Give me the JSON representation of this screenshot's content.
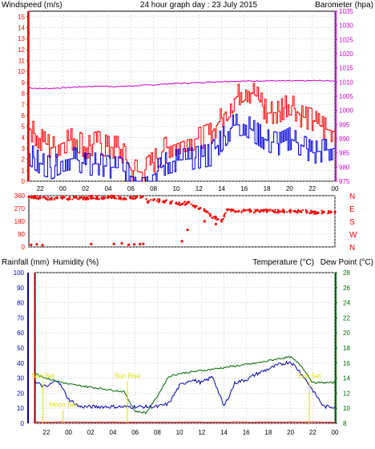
{
  "header": {
    "windspeed_label": "Windspeed (m/s)",
    "title": "24 hour graph day : 23 July 2015",
    "barometer_label": "Barometer (hpa)"
  },
  "mid_labels": {
    "rainfall": "Rainfall (mm)",
    "humidity": "Humidity (%)",
    "temperature": "Temperature (°C)",
    "dewpoint": "Dew Point (°C)"
  },
  "time_ticks": [
    "22",
    "00",
    "02",
    "04",
    "06",
    "08",
    "10",
    "12",
    "14",
    "16",
    "18",
    "20",
    "22",
    "00"
  ],
  "colors": {
    "wind": "#ff0000",
    "gust": "#ff0000",
    "wind_avg": "#0000dd",
    "barometer": "#cc00cc",
    "direction": "#ff0000",
    "rain": "#ff0000",
    "humidity": "#0000aa",
    "temperature": "#006600",
    "dewpoint": "#cc0000",
    "sun": "#dddd00",
    "grid": "#cccccc"
  },
  "chart_data": [
    {
      "type": "line",
      "name": "wind-barometer",
      "x_range": [
        -3,
        24
      ],
      "y_left_range": [
        0,
        15.5
      ],
      "y_left_ticks": [
        0,
        1,
        2,
        3,
        4,
        5,
        6,
        7,
        8,
        9,
        10,
        11,
        12,
        13,
        14,
        15
      ],
      "y_right_range": [
        975,
        1035
      ],
      "y_right_ticks": [
        975,
        980,
        985,
        990,
        995,
        1000,
        1005,
        1010,
        1015,
        1020,
        1025,
        1030,
        1035
      ],
      "x": [
        -3.0,
        -2.0,
        -1.0,
        0.0,
        1.0,
        2.0,
        3.0,
        4.0,
        5.0,
        6.0,
        7.0,
        8.0,
        9.0,
        10.0,
        11.0,
        12.0,
        13.0,
        14.0,
        15.0,
        16.0,
        17.0,
        18.0,
        19.0,
        20.0,
        21.0,
        22.0,
        23.0,
        24.0
      ],
      "series": [
        {
          "name": "",
          "role": "gust",
          "values": [
            4.8,
            3.8,
            3.0,
            3.5,
            3.9,
            3.0,
            3.6,
            3.1,
            3.1,
            1.0,
            0.8,
            1.8,
            3.0,
            3.4,
            3.8,
            3.9,
            4.3,
            5.8,
            7.4,
            8.4,
            7.8,
            6.2,
            6.3,
            7.1,
            5.9,
            5.6,
            4.8,
            4.5
          ]
        },
        {
          "name": "",
          "role": "average",
          "values": [
            2.5,
            1.6,
            1.2,
            1.9,
            2.1,
            1.5,
            1.6,
            1.3,
            1.2,
            0.4,
            0.3,
            0.6,
            1.6,
            1.9,
            2.0,
            2.2,
            2.4,
            3.8,
            5.1,
            5.2,
            4.4,
            3.7,
            3.4,
            3.9,
            3.3,
            2.6,
            2.8,
            3.0
          ]
        },
        {
          "name": "",
          "role": "barometer",
          "values": [
            1008.0,
            1007.7,
            1007.8,
            1008.0,
            1008.2,
            1008.4,
            1008.5,
            1008.5,
            1008.4,
            1008.6,
            1008.8,
            1009.0,
            1009.3,
            1009.5,
            1009.6,
            1009.8,
            1010.0,
            1010.2,
            1010.3,
            1010.3,
            1010.4,
            1010.5,
            1010.4,
            1010.4,
            1010.4,
            1010.5,
            1010.5,
            1010.4
          ]
        }
      ]
    },
    {
      "type": "scatter",
      "name": "wind-direction",
      "x_range": [
        -3,
        24
      ],
      "y_range": [
        0,
        360
      ],
      "y_ticks": [
        0,
        90,
        180,
        270,
        360
      ],
      "right_labels": [
        "N",
        "W",
        "S",
        "E",
        "N"
      ],
      "x": [
        -3.0,
        -2.5,
        -2.0,
        -1.5,
        -1.0,
        -0.5,
        0.0,
        0.5,
        1.0,
        1.5,
        2.0,
        2.5,
        3.0,
        3.5,
        4.0,
        4.5,
        5.0,
        5.5,
        6.0,
        6.5,
        7.0,
        7.5,
        8.0,
        8.5,
        9.0,
        9.5,
        10.0,
        10.5,
        11.0,
        11.5,
        12.0,
        12.5,
        13.0,
        13.5,
        14.0,
        14.5,
        15.0,
        15.5,
        16.0,
        16.5,
        17.0,
        17.5,
        18.0,
        18.5,
        19.0,
        19.5,
        20.0,
        20.5,
        21.0,
        21.5,
        22.0,
        22.5,
        23.0,
        23.5,
        24.0,
        -2.8,
        -2.3,
        -1.8,
        2.5,
        4.5,
        5.2,
        5.8,
        6.3,
        6.8,
        7.1,
        10.5,
        11.0,
        12.5,
        13.5
      ],
      "y": [
        352,
        348,
        345,
        340,
        342,
        344,
        346,
        338,
        349,
        344,
        341,
        350,
        346,
        339,
        348,
        352,
        346,
        338,
        343,
        350,
        352,
        318,
        330,
        324,
        320,
        314,
        305,
        300,
        312,
        290,
        268,
        255,
        220,
        205,
        180,
        262,
        258,
        250,
        256,
        254,
        250,
        257,
        252,
        255,
        250,
        249,
        252,
        251,
        246,
        249,
        245,
        239,
        246,
        242,
        245,
        15,
        18,
        12,
        20,
        22,
        25,
        15,
        18,
        20,
        22,
        40,
        120,
        180,
        160
      ]
    },
    {
      "type": "line",
      "name": "humidity-temperature",
      "x_range": [
        -3,
        24
      ],
      "y_left_range": [
        0,
        100
      ],
      "y_left_ticks": [
        0,
        10,
        20,
        30,
        40,
        50,
        60,
        70,
        80,
        90,
        100
      ],
      "y_right_range": [
        8,
        28
      ],
      "y_right_ticks": [
        8,
        10,
        12,
        14,
        16,
        18,
        20,
        22,
        24,
        26,
        28
      ],
      "x": [
        -3.0,
        -2.0,
        -1.0,
        0.0,
        1.0,
        2.0,
        3.0,
        4.0,
        5.0,
        6.0,
        7.0,
        8.0,
        9.0,
        10.0,
        11.0,
        12.0,
        13.0,
        14.0,
        15.0,
        16.0,
        17.0,
        18.0,
        19.0,
        20.0,
        21.0,
        22.0,
        23.0,
        24.0
      ],
      "series": [
        {
          "name": "",
          "role": "humidity",
          "values": [
            27,
            24,
            29,
            16,
            11,
            11,
            11,
            11,
            11,
            11,
            11,
            11,
            13,
            25,
            29,
            27,
            31,
            11,
            27,
            29,
            33,
            36,
            39,
            41,
            33,
            22,
            11,
            11
          ]
        },
        {
          "name": "",
          "role": "temperature",
          "values": [
            14.6,
            14.0,
            13.6,
            13.2,
            13.0,
            12.8,
            12.6,
            12.4,
            12.2,
            9.6,
            9.4,
            11.6,
            14.2,
            14.6,
            14.8,
            15.0,
            15.2,
            15.4,
            15.6,
            15.8,
            16.0,
            16.3,
            16.6,
            16.8,
            15.6,
            13.4,
            13.4,
            13.4
          ]
        },
        {
          "name": "",
          "role": "rain",
          "values": [
            0.8,
            0.8,
            0.8,
            0.8,
            0.8,
            0.8,
            0.8,
            0.8,
            0.8,
            0.8,
            0.8,
            0.8,
            0.8,
            0.8,
            0.8,
            0.8,
            0.8,
            0.8,
            0.8,
            0.8,
            0.8,
            0.8,
            0.8,
            0.8,
            0.8,
            0.8,
            0.8,
            0.8
          ]
        }
      ],
      "annotations": [
        {
          "label": "Sun Set",
          "x": -2.3,
          "y": 30
        },
        {
          "label": "Moon Set",
          "x": -0.5,
          "y": 11
        },
        {
          "label": "Sun Rise",
          "x": 5.3,
          "y": 30
        },
        {
          "label": "Sun Set",
          "x": 21.7,
          "y": 30
        }
      ]
    }
  ]
}
